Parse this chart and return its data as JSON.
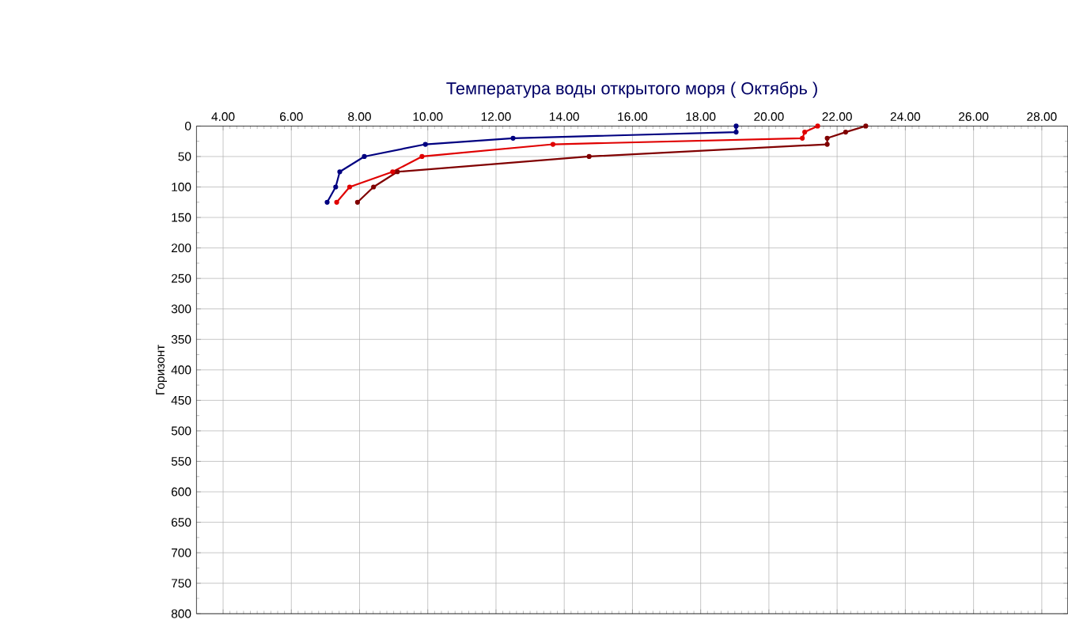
{
  "chart_data": {
    "type": "line",
    "title": "Температура воды открытого моря     ( Октябрь )",
    "ylabel": "Горизонт",
    "xlim": [
      3.22,
      28.76
    ],
    "ylim": [
      800,
      0
    ],
    "xticks": [
      {
        "value": 4,
        "label": "4.00"
      },
      {
        "value": 6,
        "label": "6.00"
      },
      {
        "value": 8,
        "label": "8.00"
      },
      {
        "value": 10,
        "label": "10.00"
      },
      {
        "value": 12,
        "label": "12.00"
      },
      {
        "value": 14,
        "label": "14.00"
      },
      {
        "value": 16,
        "label": "16.00"
      },
      {
        "value": 18,
        "label": "18.00"
      },
      {
        "value": 20,
        "label": "20.00"
      },
      {
        "value": 22,
        "label": "22.00"
      },
      {
        "value": 24,
        "label": "24.00"
      },
      {
        "value": 26,
        "label": "26.00"
      },
      {
        "value": 28,
        "label": "28.00"
      }
    ],
    "yticks": [
      0,
      50,
      100,
      150,
      200,
      250,
      300,
      350,
      400,
      450,
      500,
      550,
      600,
      650,
      700,
      750,
      800
    ],
    "grid": true,
    "marker": "circle",
    "series": [
      {
        "color": "#000080",
        "x": [
          19.04,
          19.04,
          12.5,
          9.93,
          8.14,
          7.42,
          7.3,
          7.05
        ],
        "values": [
          0,
          10,
          20,
          30,
          50,
          75,
          100,
          125
        ]
      },
      {
        "color": "#e00000",
        "x": [
          21.43,
          21.05,
          20.98,
          13.67,
          9.83,
          8.97,
          7.71,
          7.33
        ],
        "values": [
          0,
          10,
          20,
          30,
          50,
          75,
          100,
          125
        ]
      },
      {
        "color": "#800000",
        "x": [
          22.84,
          22.25,
          21.71,
          21.71,
          14.73,
          9.11,
          8.41,
          7.94
        ],
        "values": [
          0,
          10,
          20,
          30,
          50,
          75,
          100,
          125
        ]
      }
    ]
  }
}
